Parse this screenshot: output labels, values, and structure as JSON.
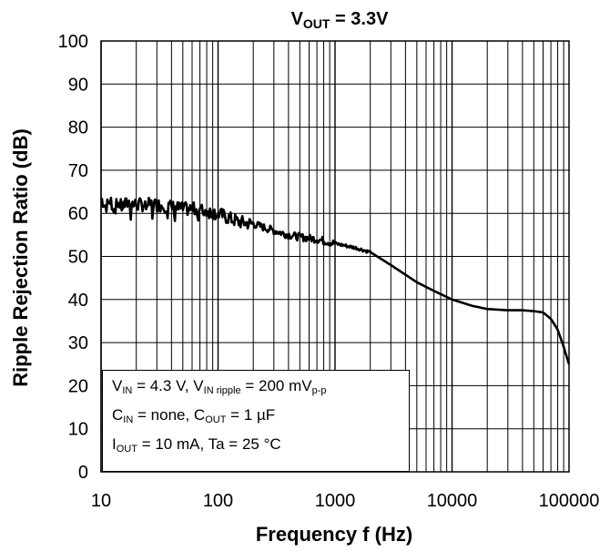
{
  "chart_data": {
    "type": "line",
    "title": "VOUT = 3.3V",
    "title_parts": {
      "main": "V",
      "sub": "OUT",
      "rest": " = 3.3V"
    },
    "xlabel": "Frequency f (Hz)",
    "ylabel": "Ripple Rejection Ratio (dB)",
    "x_scale": "log",
    "xlim": [
      10,
      100000
    ],
    "ylim": [
      0,
      100
    ],
    "grid": true,
    "x_ticks": [
      "10",
      "100",
      "1000",
      "10000",
      "100000"
    ],
    "y_ticks": [
      "0",
      "10",
      "20",
      "30",
      "40",
      "50",
      "60",
      "70",
      "80",
      "90",
      "100"
    ],
    "series": [
      {
        "x": [
          10,
          11,
          12,
          13,
          14,
          15,
          17,
          20,
          25,
          30,
          40,
          50,
          60,
          80,
          100,
          120,
          150,
          200,
          300,
          400,
          500,
          700,
          1000,
          1500,
          2000,
          3000,
          5000,
          7000,
          10000,
          15000,
          20000,
          30000,
          40000,
          50000,
          60000,
          70000,
          80000,
          90000,
          100000
        ],
        "y": [
          63.5,
          61.5,
          63,
          61,
          62.5,
          61.5,
          62.5,
          62,
          62,
          62,
          61.5,
          61,
          61,
          60.5,
          60,
          59,
          58,
          57.5,
          56,
          55,
          54.5,
          54,
          53,
          52,
          51,
          48,
          44,
          42,
          40,
          38.5,
          37.8,
          37.5,
          37.5,
          37.3,
          37,
          35.5,
          33,
          29,
          25
        ]
      }
    ]
  },
  "conditions": {
    "line1": {
      "a": "V",
      "a_sub": "IN",
      "b": " = 4.3 V, V",
      "b_sub": "IN ripple",
      "c": " = 200 mV",
      "c_sub": "p-p"
    },
    "line2": {
      "a": "C",
      "a_sub": "IN",
      "b": " = none, C",
      "b_sub": "OUT",
      "c": " = 1 µF"
    },
    "line3": {
      "a": "I",
      "a_sub": "OUT",
      "b": " = 10 mA, Ta = 25 °C"
    }
  },
  "colors": {
    "line": "#000000",
    "grid": "#000000",
    "background": "#ffffff"
  }
}
